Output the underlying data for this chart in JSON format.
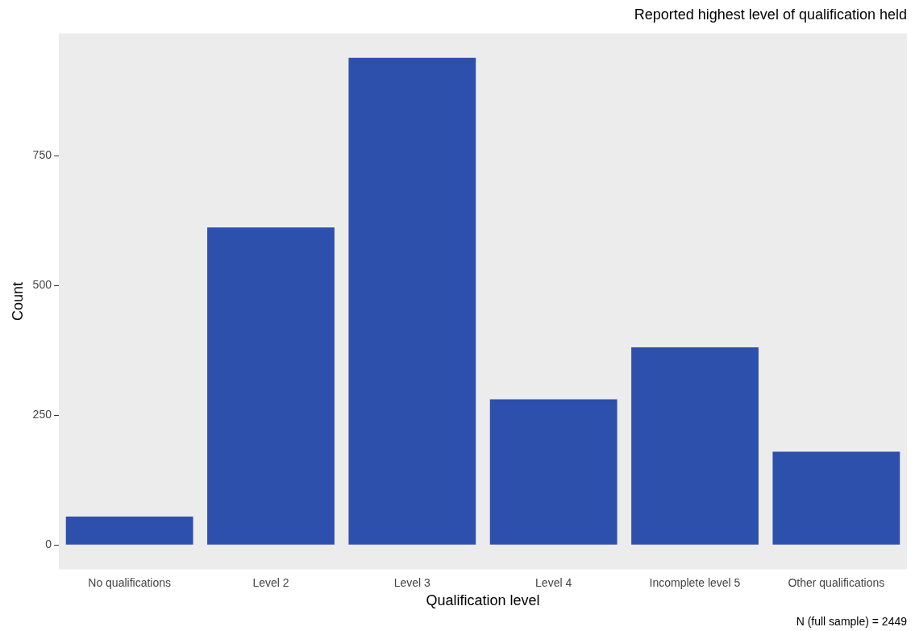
{
  "chart_data": {
    "type": "bar",
    "title": "Reported highest level of qualification held",
    "xlabel": "Qualification level",
    "ylabel": "Count",
    "categories": [
      "No qualifications",
      "Level 2",
      "Level 3",
      "Level 4",
      "Incomplete level 5",
      "Other qualifications"
    ],
    "values": [
      55,
      612,
      939,
      281,
      381,
      180
    ],
    "color": "#2e50ad",
    "ylim": [
      -47,
      986
    ],
    "yticks": [
      0,
      250,
      500,
      750
    ],
    "grid": false,
    "legend": false,
    "annotations": [
      "N (full sample) = 2449"
    ]
  }
}
